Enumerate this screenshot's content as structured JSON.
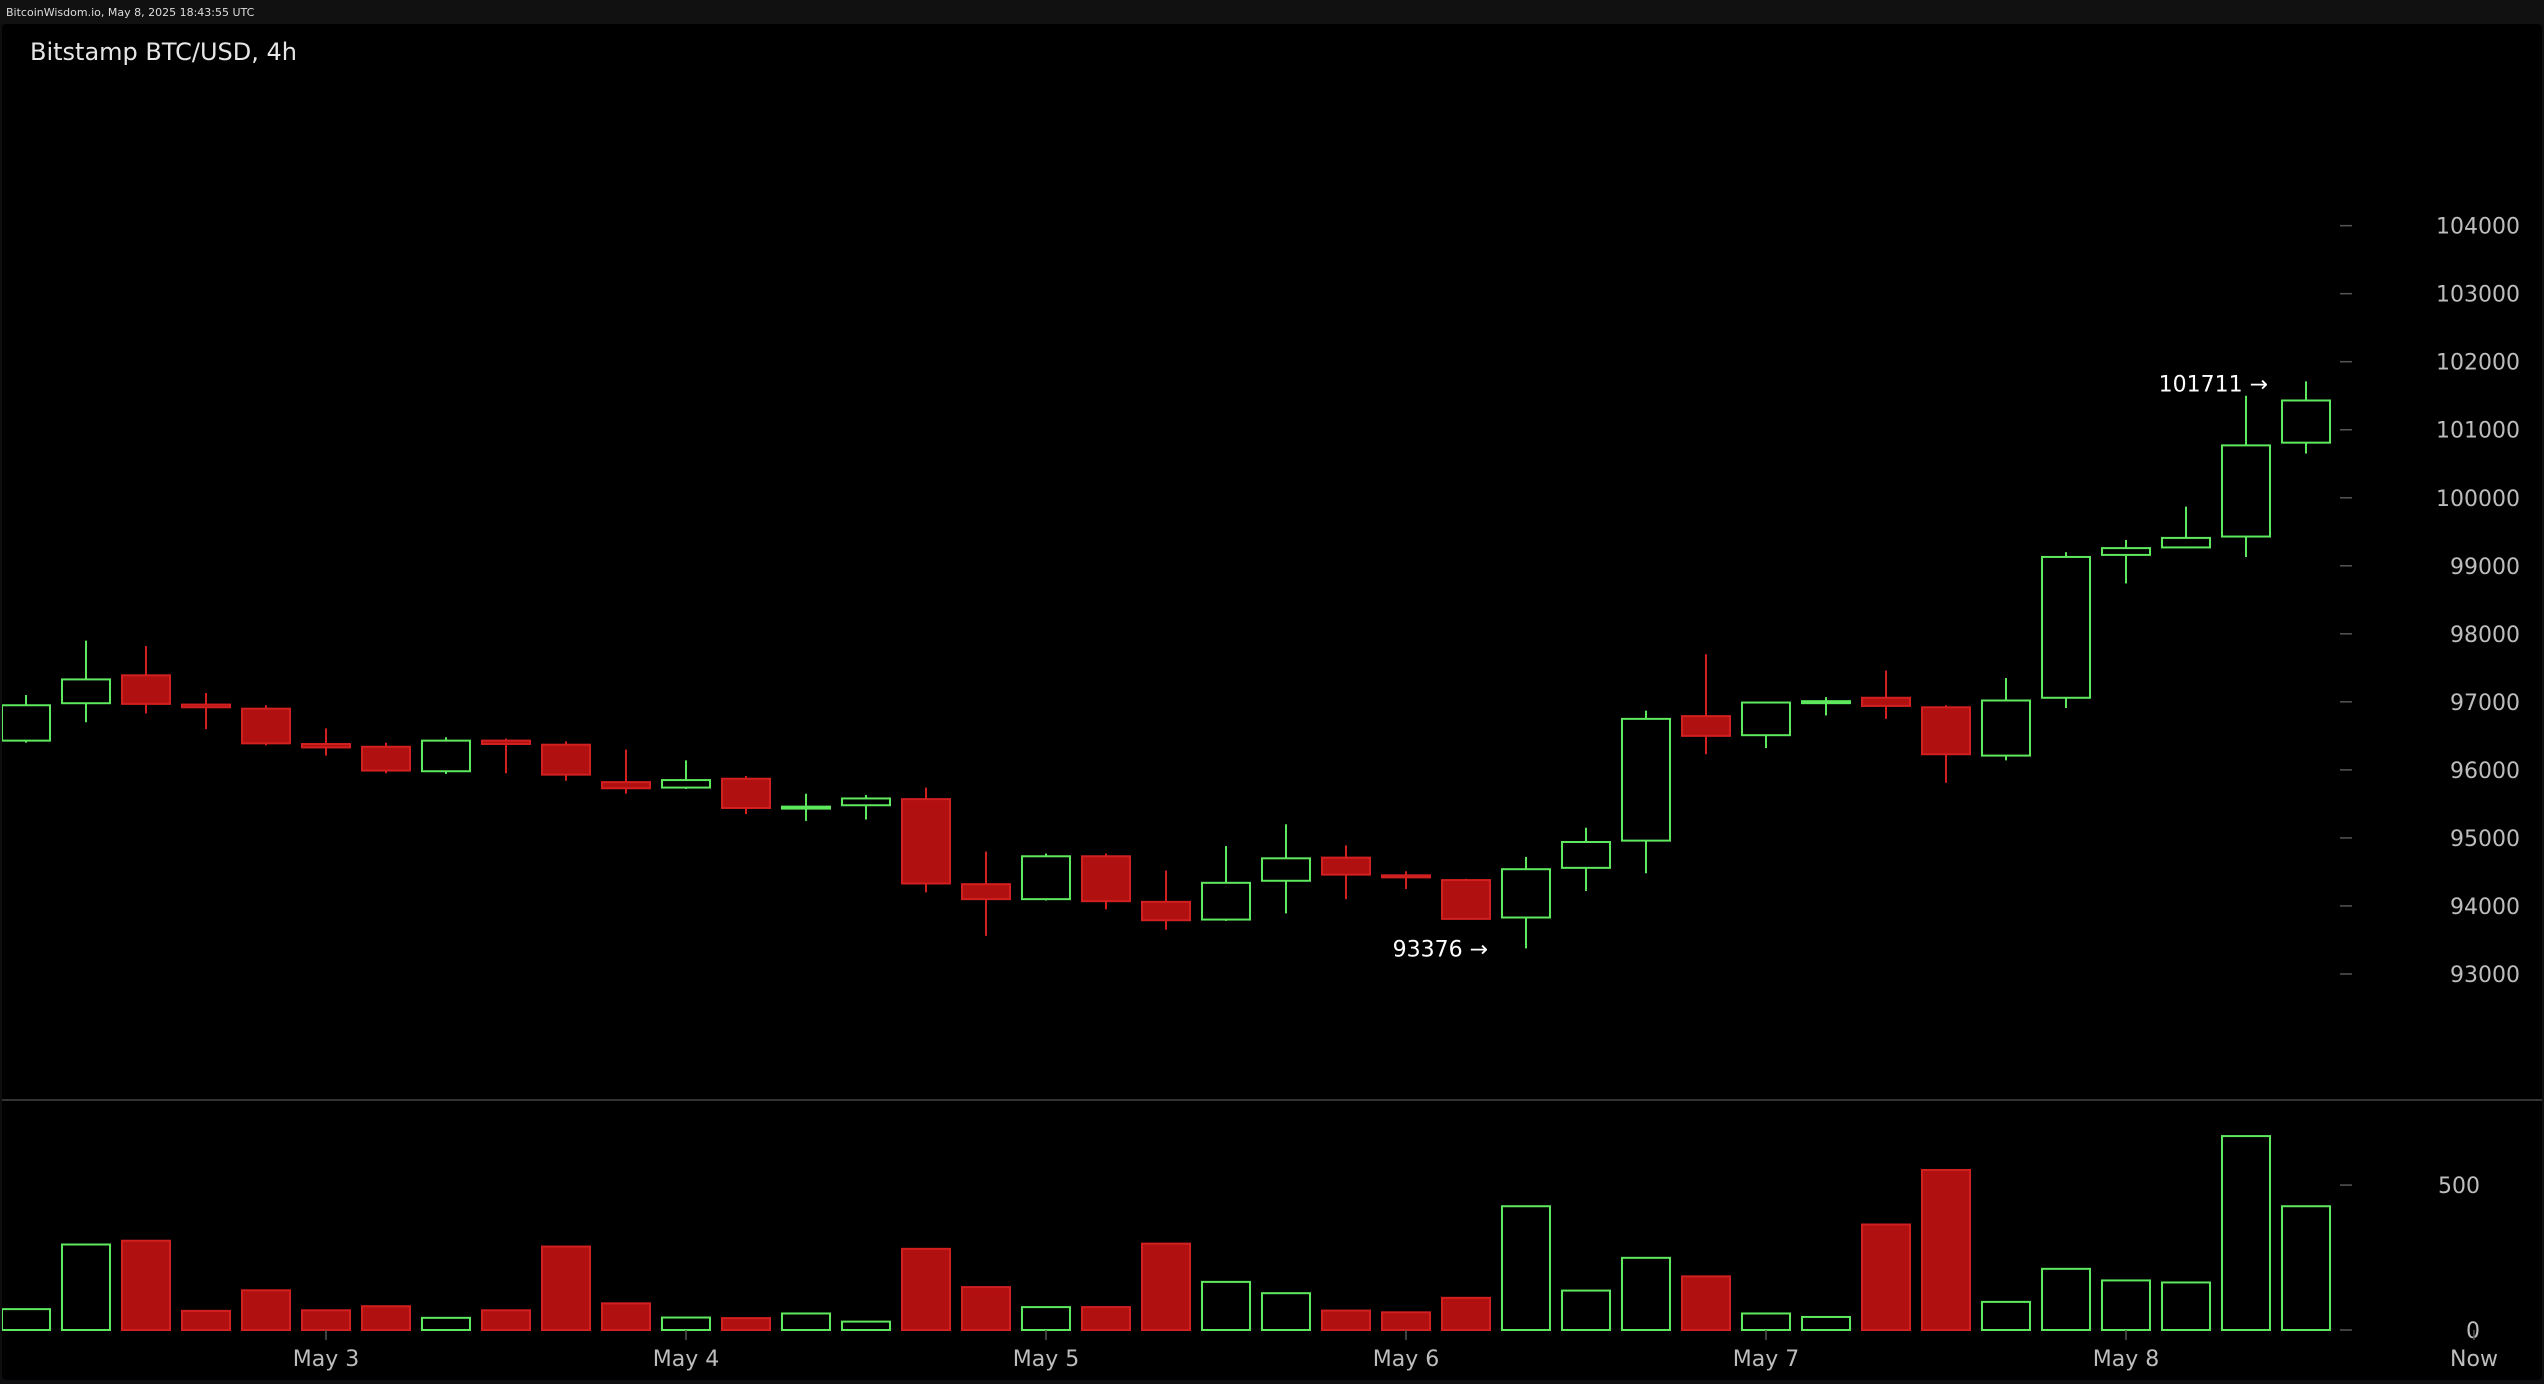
{
  "header": {
    "source_line": "BitcoinWisdom.io, May 8, 2025 18:43:55 UTC",
    "title": "Bitstamp BTC/USD, 4h"
  },
  "colors": {
    "up": "#5ee85e",
    "down": "#b01010",
    "down_wick": "#d22020",
    "background": "#000000",
    "grid_line": "#555555",
    "axis_text": "#bdbdbd"
  },
  "chart_data": {
    "type": "candlestick",
    "title": "Bitstamp BTC/USD, 4h",
    "price_axis": {
      "ticks": [
        93000,
        94000,
        95000,
        96000,
        97000,
        98000,
        99000,
        100000,
        101000,
        102000,
        103000,
        104000
      ],
      "range": [
        92000,
        105700
      ]
    },
    "volume_axis": {
      "ticks": [
        0,
        500
      ],
      "range": [
        0,
        690
      ]
    },
    "x_labels": [
      {
        "label": "May 3",
        "index": 5
      },
      {
        "label": "May 4",
        "index": 11
      },
      {
        "label": "May 5",
        "index": 17
      },
      {
        "label": "May 6",
        "index": 23
      },
      {
        "label": "May 7",
        "index": 29
      },
      {
        "label": "May 8",
        "index": 35
      },
      {
        "label": "Now",
        "index": 40.8
      }
    ],
    "annotations": [
      {
        "text": "101711 →",
        "value": 101711,
        "index": 38
      },
      {
        "text": "93376 →",
        "value": 93376,
        "index": 25
      }
    ],
    "candles": [
      {
        "o": 96430,
        "h": 97100,
        "l": 96400,
        "c": 96950,
        "v": 72
      },
      {
        "o": 96980,
        "h": 97900,
        "l": 96700,
        "c": 97330,
        "v": 295
      },
      {
        "o": 97390,
        "h": 97820,
        "l": 96830,
        "c": 96970,
        "v": 308
      },
      {
        "o": 96960,
        "h": 97130,
        "l": 96600,
        "c": 96920,
        "v": 66
      },
      {
        "o": 96900,
        "h": 96950,
        "l": 96360,
        "c": 96390,
        "v": 137
      },
      {
        "o": 96380,
        "h": 96610,
        "l": 96210,
        "c": 96330,
        "v": 68
      },
      {
        "o": 96340,
        "h": 96400,
        "l": 95950,
        "c": 95990,
        "v": 82
      },
      {
        "o": 95980,
        "h": 96480,
        "l": 95940,
        "c": 96430,
        "v": 42
      },
      {
        "o": 96430,
        "h": 96460,
        "l": 95950,
        "c": 96380,
        "v": 68
      },
      {
        "o": 96370,
        "h": 96420,
        "l": 95840,
        "c": 95930,
        "v": 288
      },
      {
        "o": 95820,
        "h": 96300,
        "l": 95650,
        "c": 95730,
        "v": 92
      },
      {
        "o": 95740,
        "h": 96140,
        "l": 95720,
        "c": 95850,
        "v": 43
      },
      {
        "o": 95870,
        "h": 95910,
        "l": 95350,
        "c": 95440,
        "v": 41
      },
      {
        "o": 95440,
        "h": 95650,
        "l": 95250,
        "c": 95460,
        "v": 57
      },
      {
        "o": 95480,
        "h": 95630,
        "l": 95270,
        "c": 95580,
        "v": 29
      },
      {
        "o": 95570,
        "h": 95740,
        "l": 94200,
        "c": 94330,
        "v": 280
      },
      {
        "o": 94320,
        "h": 94800,
        "l": 93560,
        "c": 94100,
        "v": 148
      },
      {
        "o": 94100,
        "h": 94770,
        "l": 94080,
        "c": 94730,
        "v": 79
      },
      {
        "o": 94730,
        "h": 94770,
        "l": 93950,
        "c": 94070,
        "v": 79
      },
      {
        "o": 94060,
        "h": 94520,
        "l": 93650,
        "c": 93790,
        "v": 298
      },
      {
        "o": 93800,
        "h": 94880,
        "l": 93780,
        "c": 94340,
        "v": 166
      },
      {
        "o": 94370,
        "h": 95200,
        "l": 93890,
        "c": 94700,
        "v": 127
      },
      {
        "o": 94710,
        "h": 94890,
        "l": 94100,
        "c": 94460,
        "v": 67
      },
      {
        "o": 94450,
        "h": 94510,
        "l": 94250,
        "c": 94420,
        "v": 61
      },
      {
        "o": 94380,
        "h": 94400,
        "l": 93800,
        "c": 93810,
        "v": 111
      },
      {
        "o": 93830,
        "h": 94720,
        "l": 93376,
        "c": 94540,
        "v": 427
      },
      {
        "o": 94560,
        "h": 95150,
        "l": 94220,
        "c": 94940,
        "v": 136
      },
      {
        "o": 94960,
        "h": 96870,
        "l": 94480,
        "c": 96750,
        "v": 249
      },
      {
        "o": 96790,
        "h": 97700,
        "l": 96230,
        "c": 96500,
        "v": 185
      },
      {
        "o": 96510,
        "h": 96980,
        "l": 96320,
        "c": 96990,
        "v": 57
      },
      {
        "o": 96990,
        "h": 97070,
        "l": 96800,
        "c": 97010,
        "v": 45
      },
      {
        "o": 97060,
        "h": 97460,
        "l": 96750,
        "c": 96940,
        "v": 364
      },
      {
        "o": 96920,
        "h": 96950,
        "l": 95810,
        "c": 96230,
        "v": 552
      },
      {
        "o": 96210,
        "h": 97350,
        "l": 96140,
        "c": 97020,
        "v": 97
      },
      {
        "o": 97060,
        "h": 99200,
        "l": 96910,
        "c": 99130,
        "v": 211
      },
      {
        "o": 99160,
        "h": 99380,
        "l": 98740,
        "c": 99260,
        "v": 171
      },
      {
        "o": 99270,
        "h": 99870,
        "l": 99260,
        "c": 99410,
        "v": 164
      },
      {
        "o": 99430,
        "h": 101500,
        "l": 99130,
        "c": 100770,
        "v": 669
      },
      {
        "o": 100810,
        "h": 101711,
        "l": 100650,
        "c": 101430,
        "v": 427
      }
    ]
  }
}
